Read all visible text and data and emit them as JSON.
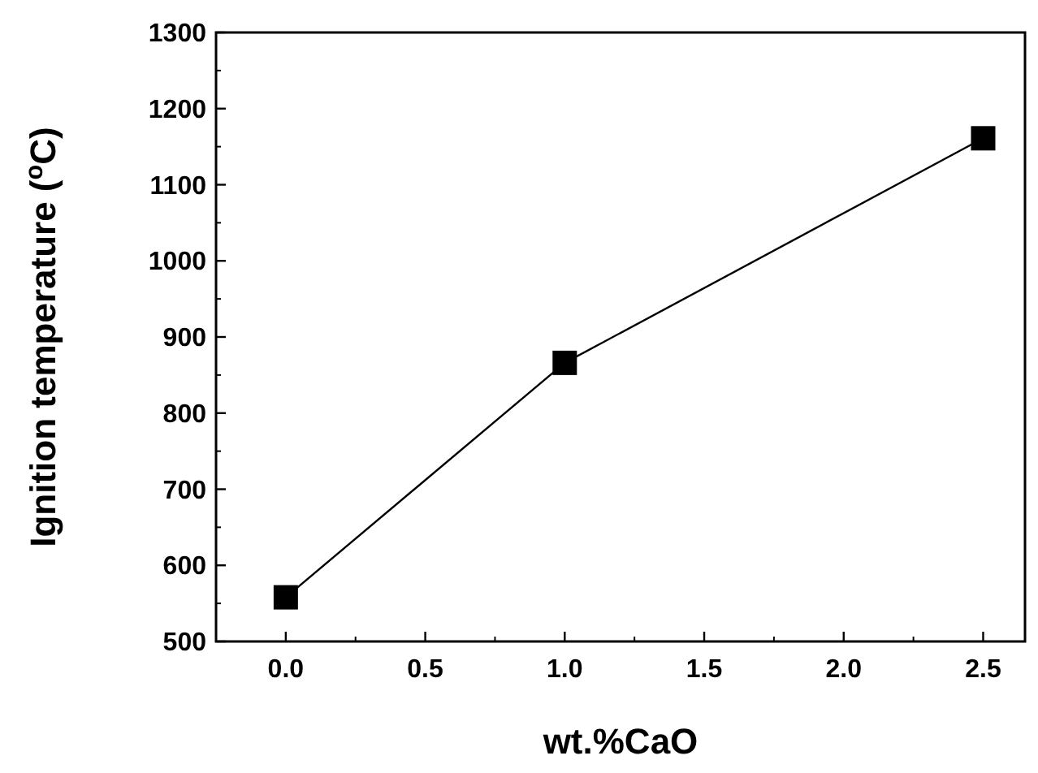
{
  "chart_data": {
    "type": "line",
    "xlabel": "wt.%CaO",
    "ylabel": "Ignition temperature ($^{o}$C)",
    "x": [
      0,
      1,
      2.5
    ],
    "series": [
      {
        "color": "#000000",
        "values": [
          558,
          866,
          1161
        ]
      }
    ],
    "xlim": [
      -0.25,
      2.65
    ],
    "xticks": [
      {
        "value": 0,
        "label": "0.0"
      },
      {
        "value": 0.5,
        "label": "0.5"
      },
      {
        "value": 1,
        "label": "1.0"
      },
      {
        "value": 1.5,
        "label": "1.5"
      },
      {
        "value": 2,
        "label": "2.0"
      },
      {
        "value": 2.5,
        "label": "2.5"
      }
    ],
    "ylim": [
      500,
      1300
    ],
    "yticks": [
      500,
      600,
      700,
      800,
      900,
      1000,
      1100,
      1200,
      1300
    ],
    "marker": "square",
    "line_style": "solid",
    "grid": false
  }
}
